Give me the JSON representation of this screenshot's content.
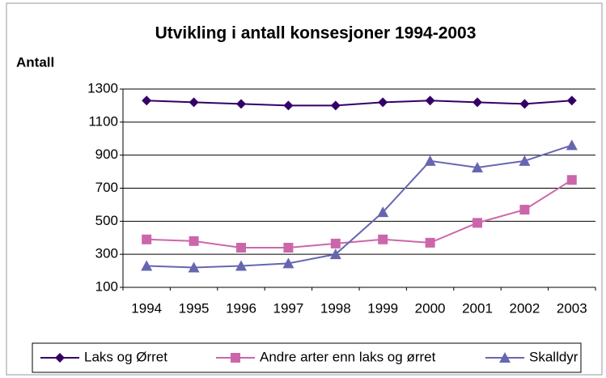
{
  "chart_data": {
    "type": "line",
    "title": "Utvikling i antall konsesjoner 1994-2003",
    "y_label": "Antall",
    "categories": [
      "1994",
      "1995",
      "1996",
      "1997",
      "1998",
      "1999",
      "2000",
      "2001",
      "2002",
      "2003"
    ],
    "series": [
      {
        "name": "Laks og Ørret",
        "color": "#330066",
        "marker": "diamond",
        "values": [
          1230,
          1220,
          1210,
          1200,
          1200,
          1220,
          1230,
          1220,
          1210,
          1230
        ]
      },
      {
        "name": "Andre arter enn laks og ørret",
        "color": "#cc66aa",
        "marker": "square",
        "values": [
          390,
          380,
          340,
          340,
          365,
          390,
          370,
          490,
          570,
          750
        ]
      },
      {
        "name": "Skalldyr",
        "color": "#6666b0",
        "marker": "triangle",
        "values": [
          230,
          220,
          230,
          245,
          300,
          555,
          865,
          825,
          865,
          960
        ]
      }
    ],
    "ylim": [
      100,
      1300
    ],
    "yticks": [
      100,
      300,
      500,
      700,
      900,
      1100,
      1300
    ],
    "grid": true,
    "legend": "bottom"
  }
}
